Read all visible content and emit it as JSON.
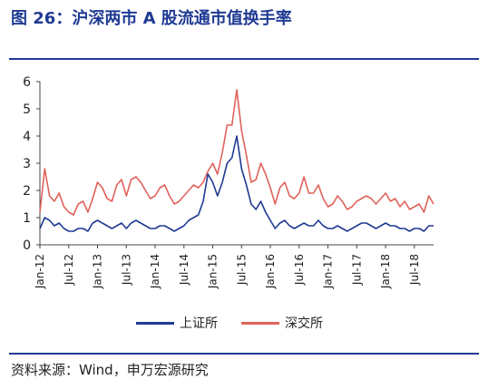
{
  "header": {
    "title": "图 26：沪深两市 A 股流通市值换手率"
  },
  "footer": {
    "source": "资料来源：Wind，申万宏源研究"
  },
  "chart_data": {
    "type": "line",
    "title": "",
    "xlabel": "",
    "ylabel": "",
    "ylim": [
      0,
      6
    ],
    "yticks": [
      "0",
      "1",
      "2",
      "3",
      "4",
      "5",
      "6"
    ],
    "xticks": [
      "Jan-12",
      "Jul-12",
      "Jan-13",
      "Jul-13",
      "Jan-14",
      "Jul-14",
      "Jan-15",
      "Jul-15",
      "Jan-16",
      "Jul-16",
      "Jan-17",
      "Jul-17",
      "Jan-18",
      "Jul-18"
    ],
    "grid": false,
    "legend_position": "bottom",
    "x": [
      "Jan-12",
      "Feb-12",
      "Mar-12",
      "Apr-12",
      "May-12",
      "Jun-12",
      "Jul-12",
      "Aug-12",
      "Sep-12",
      "Oct-12",
      "Nov-12",
      "Dec-12",
      "Jan-13",
      "Feb-13",
      "Mar-13",
      "Apr-13",
      "May-13",
      "Jun-13",
      "Jul-13",
      "Aug-13",
      "Sep-13",
      "Oct-13",
      "Nov-13",
      "Dec-13",
      "Jan-14",
      "Feb-14",
      "Mar-14",
      "Apr-14",
      "May-14",
      "Jun-14",
      "Jul-14",
      "Aug-14",
      "Sep-14",
      "Oct-14",
      "Nov-14",
      "Dec-14",
      "Jan-15",
      "Feb-15",
      "Mar-15",
      "Apr-15",
      "May-15",
      "Jun-15",
      "Jul-15",
      "Aug-15",
      "Sep-15",
      "Oct-15",
      "Nov-15",
      "Dec-15",
      "Jan-16",
      "Feb-16",
      "Mar-16",
      "Apr-16",
      "May-16",
      "Jun-16",
      "Jul-16",
      "Aug-16",
      "Sep-16",
      "Oct-16",
      "Nov-16",
      "Dec-16",
      "Jan-17",
      "Feb-17",
      "Mar-17",
      "Apr-17",
      "May-17",
      "Jun-17",
      "Jul-17",
      "Aug-17",
      "Sep-17",
      "Oct-17",
      "Nov-17",
      "Dec-17",
      "Jan-18",
      "Feb-18",
      "Mar-18",
      "Apr-18",
      "May-18",
      "Jun-18",
      "Jul-18",
      "Aug-18",
      "Sep-18",
      "Oct-18",
      "Nov-18"
    ],
    "series": [
      {
        "name": "上证所",
        "color": "#1f3a93",
        "values": [
          0.6,
          1.0,
          0.9,
          0.7,
          0.8,
          0.6,
          0.5,
          0.5,
          0.6,
          0.6,
          0.5,
          0.8,
          0.9,
          0.8,
          0.7,
          0.6,
          0.7,
          0.8,
          0.6,
          0.8,
          0.9,
          0.8,
          0.7,
          0.6,
          0.6,
          0.7,
          0.7,
          0.6,
          0.5,
          0.6,
          0.7,
          0.9,
          1.0,
          1.1,
          1.6,
          2.6,
          2.3,
          1.8,
          2.3,
          3.0,
          3.2,
          4.0,
          2.8,
          2.2,
          1.5,
          1.3,
          1.6,
          1.2,
          0.9,
          0.6,
          0.8,
          0.9,
          0.7,
          0.6,
          0.7,
          0.8,
          0.7,
          0.7,
          0.9,
          0.7,
          0.6,
          0.6,
          0.7,
          0.6,
          0.5,
          0.6,
          0.7,
          0.8,
          0.8,
          0.7,
          0.6,
          0.7,
          0.8,
          0.7,
          0.7,
          0.6,
          0.6,
          0.5,
          0.6,
          0.6,
          0.5,
          0.7,
          0.7
        ]
      },
      {
        "name": "深交所",
        "color": "#e0625a",
        "values": [
          1.2,
          2.8,
          1.8,
          1.6,
          1.9,
          1.4,
          1.2,
          1.1,
          1.5,
          1.6,
          1.2,
          1.7,
          2.3,
          2.1,
          1.7,
          1.6,
          2.2,
          2.4,
          1.8,
          2.4,
          2.5,
          2.3,
          2.0,
          1.7,
          1.8,
          2.1,
          2.2,
          1.8,
          1.5,
          1.6,
          1.8,
          2.0,
          2.2,
          2.1,
          2.3,
          2.7,
          3.0,
          2.6,
          3.4,
          4.4,
          4.4,
          5.7,
          4.2,
          3.3,
          2.3,
          2.4,
          3.0,
          2.6,
          2.1,
          1.5,
          2.1,
          2.3,
          1.8,
          1.7,
          1.9,
          2.5,
          1.9,
          1.9,
          2.2,
          1.7,
          1.4,
          1.5,
          1.8,
          1.6,
          1.3,
          1.4,
          1.6,
          1.7,
          1.8,
          1.7,
          1.5,
          1.7,
          1.9,
          1.6,
          1.7,
          1.4,
          1.6,
          1.3,
          1.4,
          1.5,
          1.2,
          1.8,
          1.5
        ]
      }
    ]
  }
}
